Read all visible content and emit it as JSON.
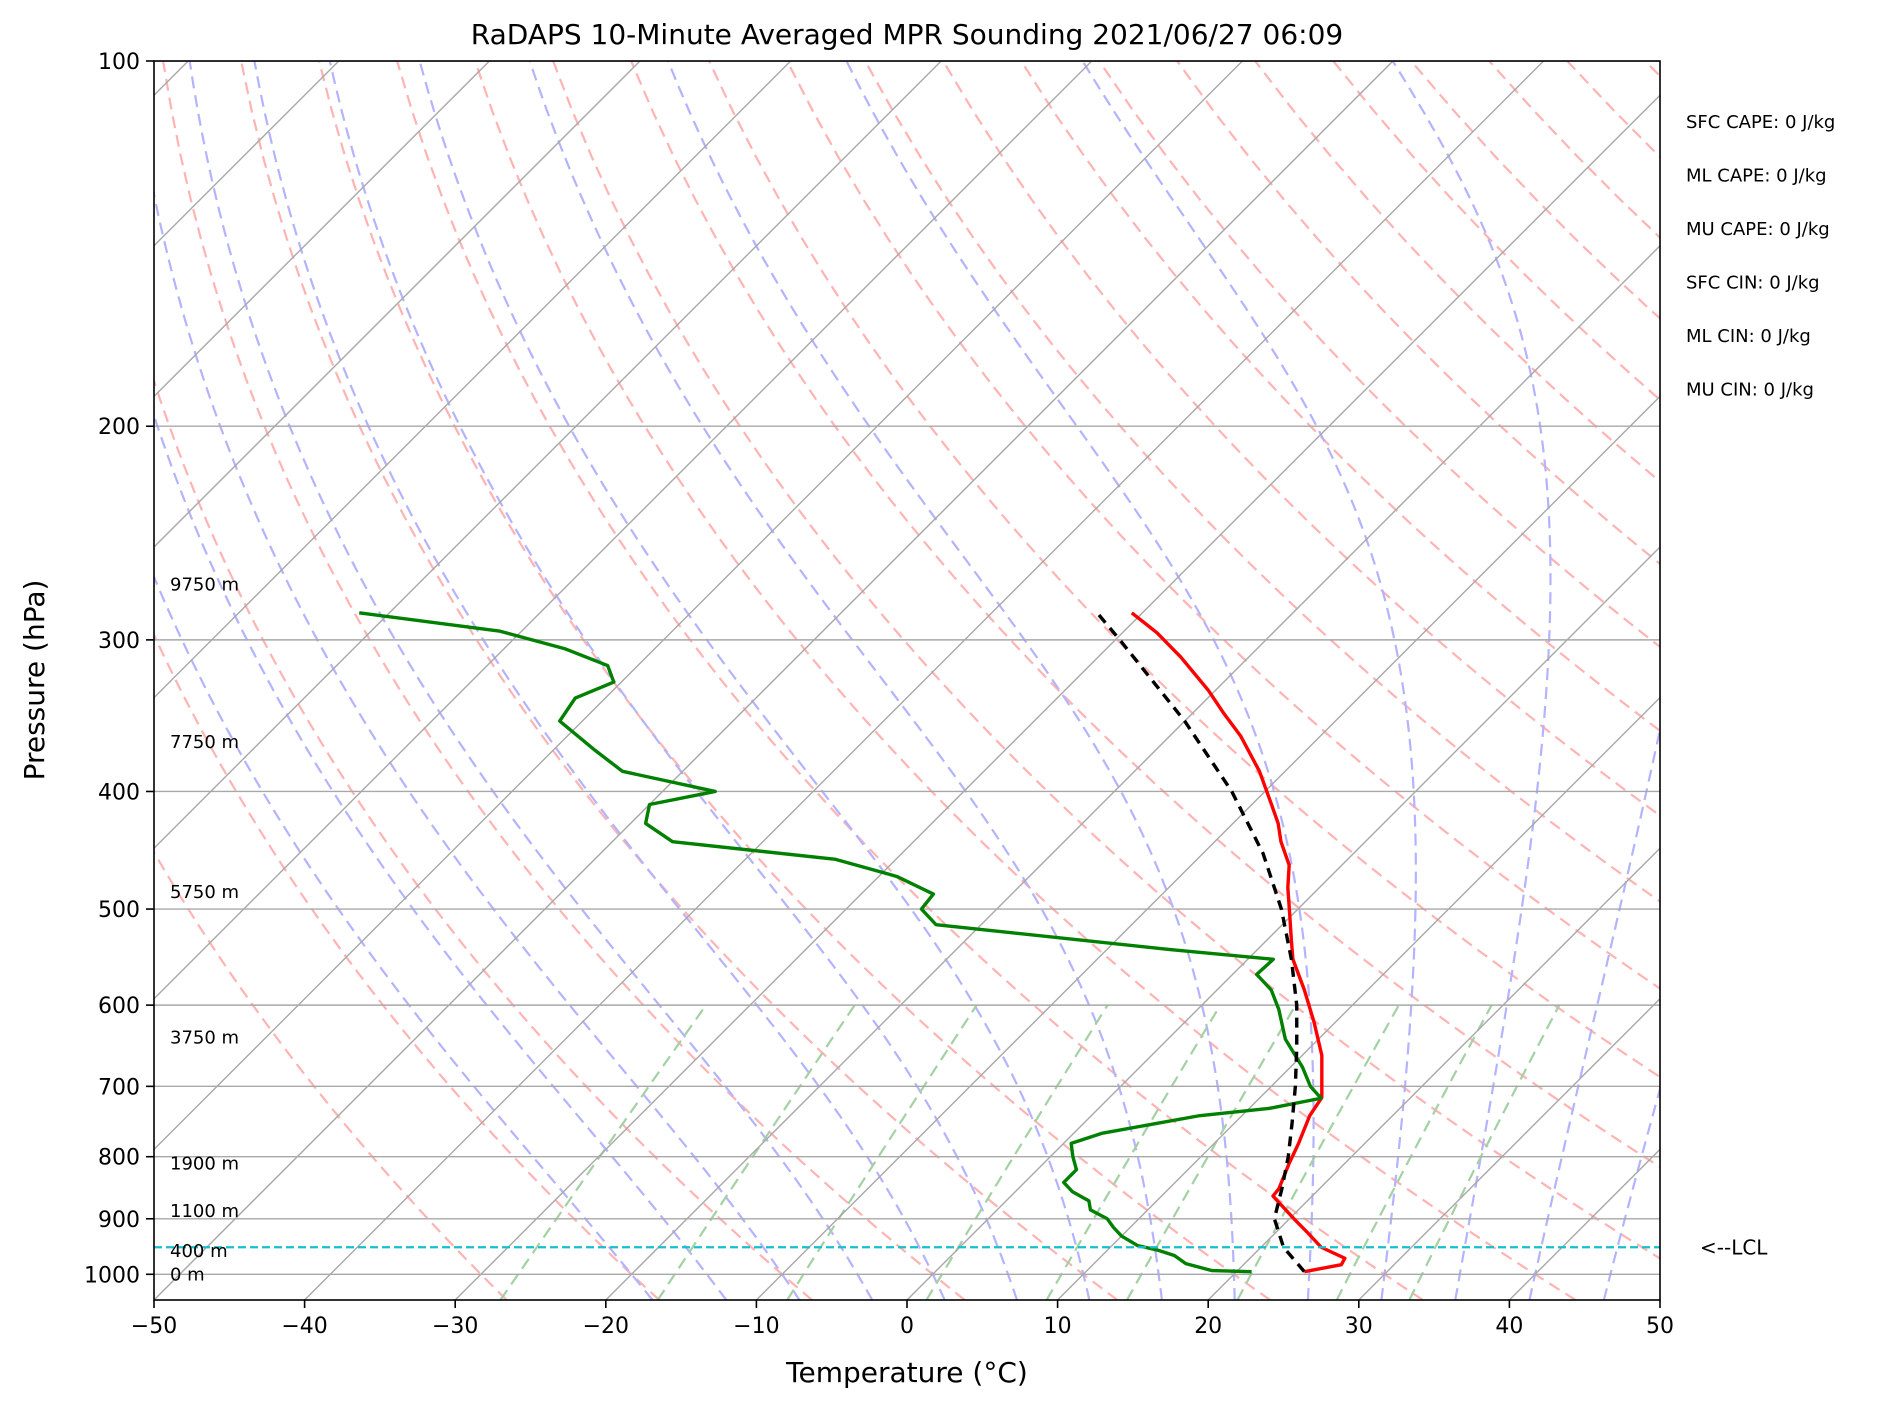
{
  "chart_data": {
    "type": "line",
    "chart_kind": "Skew-T log-P sounding diagram",
    "title": "RaDAPS 10-Minute Averaged MPR Sounding 2021/06/27 06:09",
    "xlabel": "Temperature (°C)",
    "ylabel": "Pressure (hPa)",
    "xlim": [
      -50,
      50
    ],
    "ylim": [
      1050,
      100
    ],
    "y_scale": "log",
    "skew": "45 degrees",
    "grid": true,
    "x_ticks": [
      -50,
      -40,
      -30,
      -20,
      -10,
      0,
      10,
      20,
      30,
      40,
      50
    ],
    "x_tick_labels": [
      "−50",
      "−40",
      "−30",
      "−20",
      "−10",
      "0",
      "10",
      "20",
      "30",
      "40",
      "50"
    ],
    "y_ticks": [
      1000,
      900,
      800,
      700,
      600,
      500,
      400,
      300,
      200,
      100
    ],
    "y_tick_labels": [
      "1000",
      "900",
      "800",
      "700",
      "600",
      "500",
      "400",
      "300",
      "200",
      "100"
    ],
    "series": [
      {
        "color": "#ff0000",
        "style": "solid",
        "points": [
          {
            "p": 995,
            "t": 24.5
          },
          {
            "p": 982,
            "t": 26.5
          },
          {
            "p": 970,
            "t": 26.3
          },
          {
            "p": 950,
            "t": 24.0
          },
          {
            "p": 925,
            "t": 22.2
          },
          {
            "p": 900,
            "t": 20.3
          },
          {
            "p": 862,
            "t": 17.4
          },
          {
            "p": 850,
            "t": 17.3
          },
          {
            "p": 810,
            "t": 16.3
          },
          {
            "p": 780,
            "t": 15.6
          },
          {
            "p": 740,
            "t": 14.5
          },
          {
            "p": 715,
            "t": 14.1
          },
          {
            "p": 660,
            "t": 11.3
          },
          {
            "p": 620,
            "t": 8.6
          },
          {
            "p": 583,
            "t": 5.8
          },
          {
            "p": 550,
            "t": 3.0
          },
          {
            "p": 530,
            "t": 1.6
          },
          {
            "p": 505,
            "t": -0.2
          },
          {
            "p": 480,
            "t": -2.1
          },
          {
            "p": 460,
            "t": -3.5
          },
          {
            "p": 440,
            "t": -5.6
          },
          {
            "p": 425,
            "t": -7.0
          },
          {
            "p": 410,
            "t": -8.7
          },
          {
            "p": 385,
            "t": -11.7
          },
          {
            "p": 360,
            "t": -15.3
          },
          {
            "p": 345,
            "t": -17.9
          },
          {
            "p": 330,
            "t": -20.5
          },
          {
            "p": 310,
            "t": -24.5
          },
          {
            "p": 296,
            "t": -27.7
          },
          {
            "p": 285,
            "t": -30.7
          }
        ]
      },
      {
        "color": "#008000",
        "style": "solid",
        "points": [
          {
            "p": 995,
            "t": 21.0
          },
          {
            "p": 993,
            "t": 18.3
          },
          {
            "p": 980,
            "t": 16.1
          },
          {
            "p": 965,
            "t": 14.8
          },
          {
            "p": 955,
            "t": 13.3
          },
          {
            "p": 947,
            "t": 11.7
          },
          {
            "p": 930,
            "t": 10.0
          },
          {
            "p": 915,
            "t": 8.9
          },
          {
            "p": 900,
            "t": 7.9
          },
          {
            "p": 885,
            "t": 6.2
          },
          {
            "p": 870,
            "t": 5.5
          },
          {
            "p": 855,
            "t": 3.8
          },
          {
            "p": 840,
            "t": 2.6
          },
          {
            "p": 820,
            "t": 2.6
          },
          {
            "p": 800,
            "t": 1.5
          },
          {
            "p": 780,
            "t": 0.5
          },
          {
            "p": 765,
            "t": 1.9
          },
          {
            "p": 740,
            "t": 7.2
          },
          {
            "p": 730,
            "t": 11.3
          },
          {
            "p": 716,
            "t": 14.1
          },
          {
            "p": 700,
            "t": 12.6
          },
          {
            "p": 675,
            "t": 10.8
          },
          {
            "p": 640,
            "t": 7.8
          },
          {
            "p": 605,
            "t": 5.4
          },
          {
            "p": 583,
            "t": 3.6
          },
          {
            "p": 566,
            "t": 1.6
          },
          {
            "p": 550,
            "t": 1.7
          },
          {
            "p": 540,
            "t": -5.8
          },
          {
            "p": 515,
            "t": -23.0
          },
          {
            "p": 500,
            "t": -25.0
          },
          {
            "p": 486,
            "t": -25.2
          },
          {
            "p": 470,
            "t": -28.8
          },
          {
            "p": 455,
            "t": -34.0
          },
          {
            "p": 440,
            "t": -46.0
          },
          {
            "p": 425,
            "t": -49.0
          },
          {
            "p": 410,
            "t": -50.0
          },
          {
            "p": 400,
            "t": -46.5
          },
          {
            "p": 385,
            "t": -54.0
          },
          {
            "p": 370,
            "t": -57.2
          },
          {
            "p": 350,
            "t": -61.5
          },
          {
            "p": 335,
            "t": -62.0
          },
          {
            "p": 325,
            "t": -60.5
          },
          {
            "p": 315,
            "t": -62.0
          },
          {
            "p": 305,
            "t": -66.0
          },
          {
            "p": 295,
            "t": -71.5
          },
          {
            "p": 285,
            "t": -82.0
          }
        ]
      },
      {
        "color": "#000000",
        "style": "dashed",
        "points": [
          {
            "p": 995,
            "t": 24.5
          },
          {
            "p": 950,
            "t": 21.5
          },
          {
            "p": 900,
            "t": 19.0
          },
          {
            "p": 850,
            "t": 17.5
          },
          {
            "p": 800,
            "t": 15.8
          },
          {
            "p": 750,
            "t": 13.8
          },
          {
            "p": 700,
            "t": 11.6
          },
          {
            "p": 650,
            "t": 9.1
          },
          {
            "p": 600,
            "t": 6.3
          },
          {
            "p": 550,
            "t": 2.9
          },
          {
            "p": 500,
            "t": -1.1
          },
          {
            "p": 450,
            "t": -6.0
          },
          {
            "p": 400,
            "t": -12.2
          },
          {
            "p": 350,
            "t": -20.0
          },
          {
            "p": 300,
            "t": -29.7
          },
          {
            "p": 285,
            "t": -33.0
          }
        ]
      }
    ],
    "lcl": {
      "p": 950,
      "label": "<--LCL",
      "color": "#17becf"
    },
    "height_labels": [
      {
        "text": "0 m",
        "p": 1000
      },
      {
        "text": "400 m",
        "p": 957
      },
      {
        "text": "1100 m",
        "p": 887
      },
      {
        "text": "1900 m",
        "p": 810
      },
      {
        "text": "3750 m",
        "p": 638
      },
      {
        "text": "5750 m",
        "p": 484
      },
      {
        "text": "7750 m",
        "p": 364
      },
      {
        "text": "9750 m",
        "p": 270
      }
    ],
    "indices": [
      {
        "label": "SFC CAPE: 0 J/kg"
      },
      {
        "label": "ML CAPE: 0 J/kg"
      },
      {
        "label": "MU CAPE: 0 J/kg"
      },
      {
        "label": "SFC CIN: 0 J/kg"
      },
      {
        "label": "ML CIN: 0 J/kg"
      },
      {
        "label": "MU CIN: 0 J/kg"
      }
    ],
    "background_lines": {
      "isotherm_color": "#a8a8a8",
      "isobar_color": "#a8a8a8",
      "dry_adiabat_color": "#ffb3b3",
      "moist_adiabat_color": "#b3b3ff",
      "mixing_ratio_color": "#a3d1a3"
    }
  }
}
